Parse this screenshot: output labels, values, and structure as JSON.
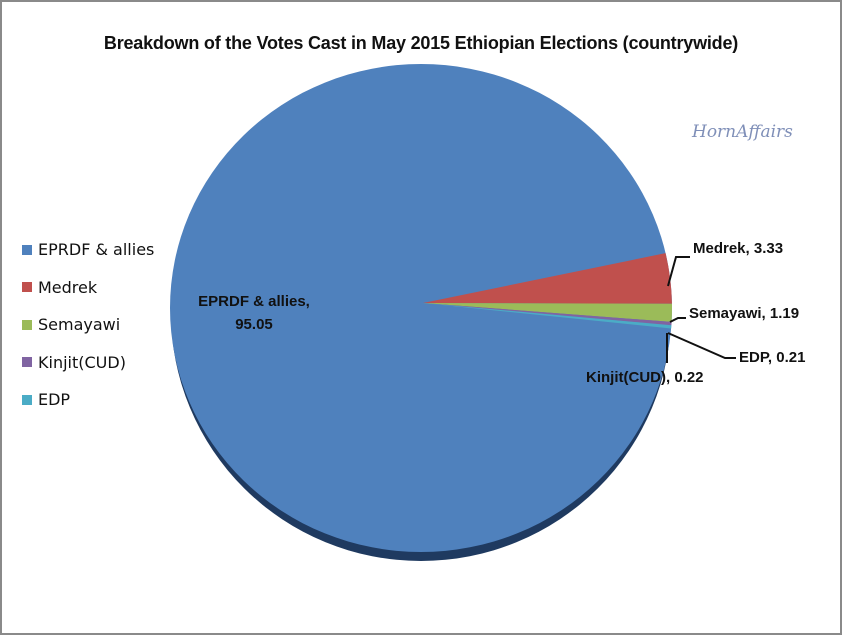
{
  "chart_data": {
    "type": "pie",
    "title": "Breakdown of the Votes Cast in May 2015 Ethiopian Elections (countrywide)",
    "watermark": "HornAffairs",
    "legend_position": "left",
    "categories": [
      "EPRDF & allies",
      "Medrek",
      "Semayawi",
      "Kinjit(CUD)",
      "EDP"
    ],
    "values": [
      95.05,
      3.33,
      1.19,
      0.22,
      0.21
    ],
    "colors": [
      "#4f81bd",
      "#c0504d",
      "#9bbb59",
      "#8064a2",
      "#4bacc6"
    ],
    "data_labels": [
      "EPRDF & allies, 95.05",
      "Medrek, 3.33",
      "Semayawi, 1.19",
      "Kinjit(CUD), 0.22",
      "EDP, 0.21"
    ]
  },
  "title": "Breakdown of the Votes Cast in May 2015 Ethiopian Elections (countrywide)",
  "watermark": "HornAffairs",
  "legend": [
    {
      "label": "EPRDF & allies",
      "color": "#4f81bd"
    },
    {
      "label": "Medrek",
      "color": "#c0504d"
    },
    {
      "label": "Semayawi",
      "color": "#9bbb59"
    },
    {
      "label": "Kinjit(CUD)",
      "color": "#8064a2"
    },
    {
      "label": "EDP",
      "color": "#4bacc6"
    }
  ],
  "labels": {
    "eprdf_line1": "EPRDF & allies,",
    "eprdf_line2": "95.05",
    "medrek": "Medrek, 3.33",
    "semayawi": "Semayawi, 1.19",
    "edp": "EDP, 0.21",
    "kinjit": "Kinjit(CUD), 0.22"
  }
}
